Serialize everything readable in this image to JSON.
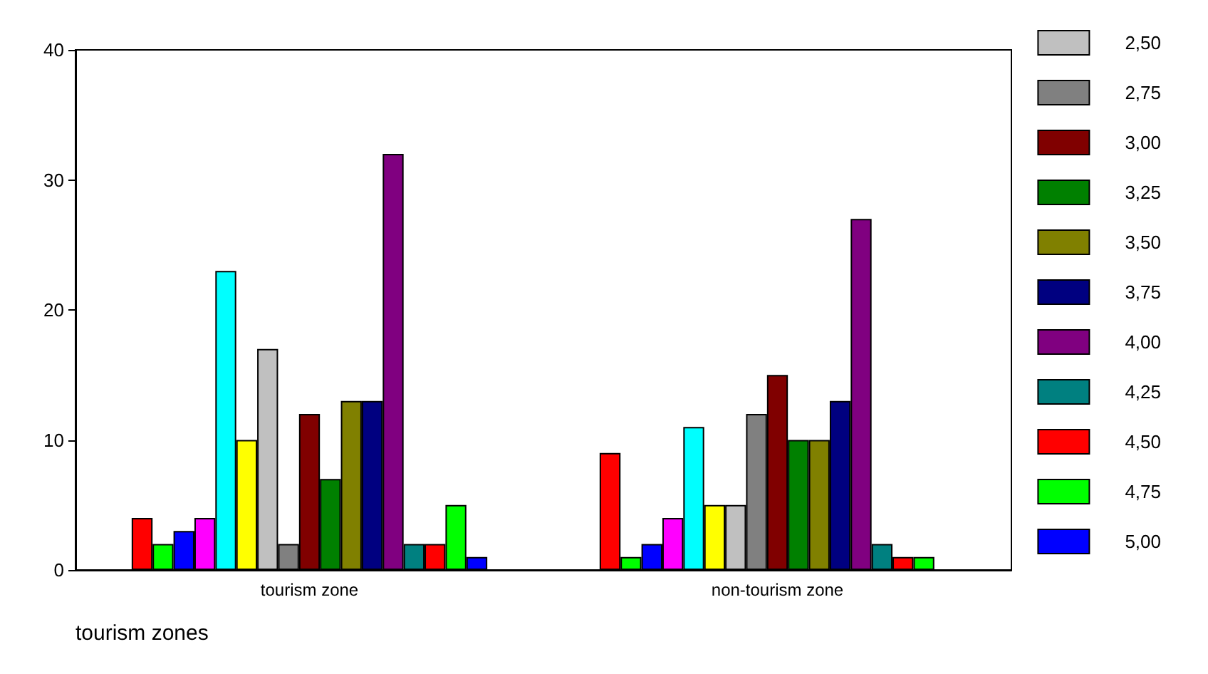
{
  "chart_data": {
    "type": "bar",
    "xlabel": "tourism zones",
    "categories": [
      "tourism zone",
      "non-tourism zone"
    ],
    "series": [
      {
        "color": "#ff0000",
        "values": [
          4,
          9
        ]
      },
      {
        "color": "#00ff00",
        "values": [
          2,
          1
        ]
      },
      {
        "color": "#0000ff",
        "values": [
          3,
          2
        ]
      },
      {
        "color": "#ff00ff",
        "values": [
          4,
          4
        ]
      },
      {
        "color": "#00ffff",
        "values": [
          23,
          11
        ]
      },
      {
        "color": "#ffff00",
        "values": [
          10,
          5
        ]
      },
      {
        "name": "2,50",
        "color": "#c0c0c0",
        "values": [
          17,
          5
        ]
      },
      {
        "name": "2,75",
        "color": "#808080",
        "values": [
          2,
          12
        ]
      },
      {
        "name": "3,00",
        "color": "#800000",
        "values": [
          12,
          15
        ]
      },
      {
        "name": "3,25",
        "color": "#008000",
        "values": [
          7,
          10
        ]
      },
      {
        "name": "3,50",
        "color": "#808000",
        "values": [
          13,
          10
        ]
      },
      {
        "name": "3,75",
        "color": "#000080",
        "values": [
          13,
          13
        ]
      },
      {
        "name": "4,00",
        "color": "#800080",
        "values": [
          32,
          27
        ]
      },
      {
        "name": "4,25",
        "color": "#008080",
        "values": [
          2,
          2
        ]
      },
      {
        "name": "4,50",
        "color": "#ff0000",
        "values": [
          2,
          1
        ]
      },
      {
        "name": "4,75",
        "color": "#00ff00",
        "values": [
          5,
          1
        ]
      },
      {
        "name": "5,00",
        "color": "#0000ff",
        "values": [
          1,
          null
        ]
      }
    ],
    "ylim": [
      0,
      40
    ],
    "yticks": [
      0,
      10,
      20,
      30,
      40
    ],
    "grid": false,
    "legend": "right"
  }
}
